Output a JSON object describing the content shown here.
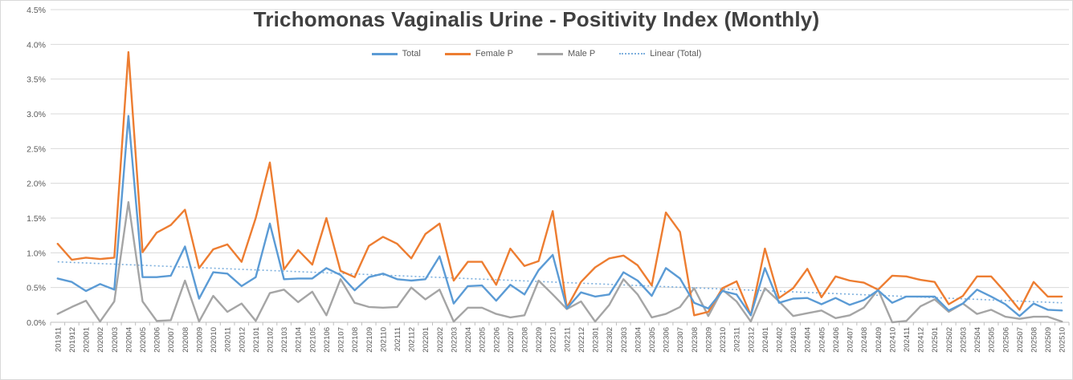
{
  "chart_data": {
    "type": "line",
    "title": "Trichomonas Vaginalis Urine - Positivity Index (Monthly)",
    "legend_position": "top",
    "grid": true,
    "y_axis": {
      "min": 0,
      "max": 4.5,
      "step": 0.5,
      "unit": "%",
      "tick_labels": [
        "0.0%",
        "0.5%",
        "1.0%",
        "1.5%",
        "2.0%",
        "2.5%",
        "3.0%",
        "3.5%",
        "4.0%",
        "4.5%"
      ]
    },
    "categories": [
      "201911",
      "201912",
      "202001",
      "202002",
      "202003",
      "202004",
      "202005",
      "202006",
      "202007",
      "202008",
      "202009",
      "202010",
      "202011",
      "202012",
      "202101",
      "202102",
      "202103",
      "202104",
      "202105",
      "202106",
      "202107",
      "202108",
      "202109",
      "202110",
      "202111",
      "202112",
      "202201",
      "202202",
      "202203",
      "202204",
      "202205",
      "202206",
      "202207",
      "202208",
      "202209",
      "202210",
      "202211",
      "202212",
      "202301",
      "202302",
      "202303",
      "202304",
      "202305",
      "202306",
      "202307",
      "202308",
      "202309",
      "202310",
      "202311",
      "202312",
      "202401",
      "202402",
      "202403",
      "202404",
      "202405",
      "202406",
      "202407",
      "202408",
      "202409",
      "202410",
      "202411",
      "202412",
      "202501",
      "202502",
      "202503",
      "202504",
      "202505",
      "202506",
      "202507",
      "202508",
      "202509",
      "202510"
    ],
    "series": [
      {
        "name": "Total",
        "color": "#5B9BD5",
        "style": "solid",
        "values": [
          0.63,
          0.58,
          0.45,
          0.55,
          0.47,
          2.97,
          0.65,
          0.65,
          0.67,
          1.09,
          0.34,
          0.72,
          0.7,
          0.52,
          0.65,
          1.42,
          0.62,
          0.63,
          0.63,
          0.78,
          0.68,
          0.46,
          0.65,
          0.7,
          0.62,
          0.6,
          0.62,
          0.95,
          0.27,
          0.52,
          0.53,
          0.31,
          0.54,
          0.4,
          0.75,
          0.97,
          0.2,
          0.43,
          0.37,
          0.4,
          0.72,
          0.6,
          0.38,
          0.78,
          0.63,
          0.28,
          0.2,
          0.45,
          0.4,
          0.1,
          0.78,
          0.28,
          0.34,
          0.35,
          0.26,
          0.35,
          0.25,
          0.32,
          0.46,
          0.28,
          0.37,
          0.37,
          0.37,
          0.17,
          0.27,
          0.47,
          0.37,
          0.26,
          0.09,
          0.27,
          0.18,
          0.17
        ]
      },
      {
        "name": "Female P",
        "color": "#ED7D31",
        "style": "solid",
        "values": [
          1.13,
          0.9,
          0.93,
          0.91,
          0.93,
          3.89,
          1.01,
          1.29,
          1.4,
          1.62,
          0.78,
          1.05,
          1.12,
          0.87,
          1.5,
          2.3,
          0.76,
          1.04,
          0.83,
          1.5,
          0.74,
          0.65,
          1.1,
          1.23,
          1.13,
          0.92,
          1.27,
          1.42,
          0.6,
          0.87,
          0.87,
          0.54,
          1.06,
          0.81,
          0.88,
          1.6,
          0.21,
          0.58,
          0.79,
          0.92,
          0.96,
          0.82,
          0.53,
          1.58,
          1.3,
          0.1,
          0.15,
          0.49,
          0.59,
          0.1,
          1.06,
          0.35,
          0.49,
          0.77,
          0.36,
          0.66,
          0.6,
          0.57,
          0.47,
          0.67,
          0.66,
          0.61,
          0.58,
          0.26,
          0.38,
          0.66,
          0.66,
          0.43,
          0.18,
          0.58,
          0.37,
          0.37
        ]
      },
      {
        "name": "Male P",
        "color": "#A5A5A5",
        "style": "solid",
        "values": [
          0.12,
          0.22,
          0.31,
          0.01,
          0.3,
          1.73,
          0.3,
          0.02,
          0.03,
          0.6,
          0.01,
          0.38,
          0.15,
          0.27,
          0.02,
          0.42,
          0.47,
          0.29,
          0.44,
          0.1,
          0.62,
          0.28,
          0.22,
          0.21,
          0.22,
          0.5,
          0.33,
          0.47,
          0.01,
          0.21,
          0.21,
          0.12,
          0.07,
          0.1,
          0.6,
          0.4,
          0.19,
          0.3,
          0.01,
          0.25,
          0.62,
          0.4,
          0.07,
          0.12,
          0.22,
          0.49,
          0.09,
          0.47,
          0.3,
          0.01,
          0.49,
          0.3,
          0.09,
          0.13,
          0.17,
          0.06,
          0.1,
          0.21,
          0.47,
          0.0,
          0.02,
          0.23,
          0.33,
          0.15,
          0.27,
          0.12,
          0.18,
          0.08,
          0.05,
          0.08,
          0.08,
          0.01
        ]
      },
      {
        "name": "Linear (Total)",
        "color": "#7EB0DE",
        "style": "dotted",
        "trend": {
          "start": 0.87,
          "end": 0.28
        }
      }
    ],
    "style": {
      "gridline_color": "#d9d9d9",
      "axis_color": "#bfbfbf",
      "tick_label_color": "#595959",
      "title_color": "#404040"
    }
  }
}
